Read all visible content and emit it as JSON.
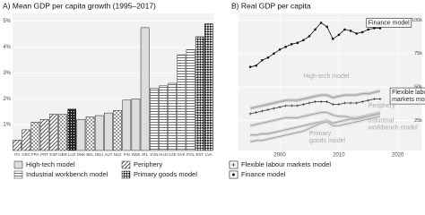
{
  "chart_data": [
    {
      "type": "bar",
      "title": "A) Mean GDP per capita growth (1995–2017)",
      "categories": [
        "ITA",
        "GRC",
        "FRA",
        "PRT",
        "ESP",
        "GBR",
        "LUX",
        "DNK",
        "BEL",
        "DEU",
        "AUT",
        "NLD",
        "FIN",
        "SWE",
        "IRL",
        "SVN",
        "HUN",
        "CZE",
        "SVK",
        "POL",
        "EST",
        "LVA"
      ],
      "series": [
        {
          "name": "High-tech model",
          "pattern": "plain",
          "values": [
            null,
            null,
            null,
            null,
            null,
            null,
            null,
            1.2,
            null,
            1.35,
            1.45,
            null,
            1.95,
            2.0,
            4.75,
            null,
            null,
            null,
            null,
            null,
            null,
            null
          ]
        },
        {
          "name": "Industrial workbench model",
          "pattern": "hlines",
          "values": [
            null,
            null,
            null,
            null,
            null,
            null,
            null,
            null,
            null,
            null,
            null,
            null,
            null,
            null,
            null,
            2.4,
            2.5,
            2.6,
            3.7,
            3.9,
            null,
            null
          ]
        },
        {
          "name": "Periphery",
          "pattern": "diag",
          "values": [
            0.4,
            0.8,
            null,
            1.2,
            1.4,
            null,
            null,
            null,
            null,
            null,
            null,
            null,
            null,
            null,
            null,
            null,
            null,
            null,
            null,
            null,
            null,
            null
          ]
        },
        {
          "name": "Primary goods model",
          "pattern": "check",
          "values": [
            null,
            null,
            null,
            null,
            null,
            null,
            null,
            null,
            null,
            null,
            null,
            null,
            null,
            null,
            null,
            null,
            null,
            null,
            null,
            null,
            4.4,
            4.9
          ]
        },
        {
          "name": "Flexible labour markets model",
          "pattern": "cross",
          "values": [
            null,
            null,
            1.1,
            null,
            null,
            1.4,
            null,
            null,
            1.3,
            null,
            null,
            1.55,
            null,
            null,
            null,
            null,
            null,
            null,
            null,
            null,
            null,
            null
          ]
        },
        {
          "name": "Finance model",
          "pattern": "dark",
          "values": [
            null,
            null,
            null,
            null,
            null,
            null,
            1.6,
            null,
            null,
            null,
            null,
            null,
            null,
            null,
            null,
            null,
            null,
            null,
            null,
            null,
            null,
            null
          ]
        }
      ],
      "ylim": [
        0,
        5.3
      ],
      "yticks": [
        {
          "value": 1,
          "label": "1%"
        },
        {
          "value": 2,
          "label": "2%"
        },
        {
          "value": 3,
          "label": "3%"
        },
        {
          "value": 4,
          "label": "4%"
        },
        {
          "value": 5,
          "label": "5%"
        }
      ],
      "grid": true
    },
    {
      "type": "line",
      "title": "B) Real GDP per capita",
      "x": [
        1995,
        1996,
        1997,
        1998,
        1999,
        2000,
        2001,
        2002,
        2003,
        2004,
        2005,
        2006,
        2007,
        2008,
        2009,
        2010,
        2011,
        2012,
        2013,
        2014,
        2015,
        2016,
        2017
      ],
      "series": [
        {
          "label": [
            "Finance model"
          ],
          "color": "#111111",
          "marker": "dot",
          "values": [
            65000,
            66000,
            70000,
            72000,
            75000,
            78000,
            80000,
            82000,
            83000,
            85000,
            88000,
            93000,
            98000,
            95000,
            86000,
            89000,
            93000,
            92000,
            90000,
            91000,
            93000,
            94000,
            94000
          ]
        },
        {
          "label": [
            "High-tech model"
          ],
          "color": "#bbbbbb",
          "marker": "band",
          "values": [
            34000,
            35000,
            36000,
            37000,
            38000,
            39000,
            40000,
            40000,
            40000,
            41000,
            42000,
            43000,
            44000,
            44000,
            42000,
            43000,
            44000,
            44000,
            44000,
            45000,
            45000,
            46000,
            47000
          ]
        },
        {
          "label": [
            "Flexible labour",
            "markets model"
          ],
          "color": "#333333",
          "marker": "plus",
          "values": [
            30000,
            31000,
            32000,
            33000,
            34000,
            35000,
            36000,
            36000,
            36000,
            37000,
            38000,
            39000,
            39000,
            39000,
            37000,
            37000,
            38000,
            38000,
            38000,
            39000,
            40000,
            41000,
            41000
          ]
        },
        {
          "label": [
            "Periphery"
          ],
          "color": "#cccccc",
          "marker": "band",
          "values": [
            21000,
            22000,
            23000,
            24000,
            25000,
            26000,
            27000,
            27000,
            27000,
            28000,
            29000,
            30000,
            31000,
            31000,
            29000,
            28000,
            28000,
            27000,
            27000,
            28000,
            29000,
            30000,
            31000
          ]
        },
        {
          "label": [
            "Industrial",
            "workbench model"
          ],
          "color": "#cccccc",
          "marker": "band",
          "values": [
            14000,
            14000,
            15000,
            15000,
            16000,
            17000,
            18000,
            19000,
            20000,
            21000,
            22000,
            23000,
            24000,
            25000,
            23000,
            24000,
            25000,
            26000,
            26000,
            27000,
            28000,
            29000,
            30000
          ]
        },
        {
          "label": [
            "Primary",
            "goods model"
          ],
          "color": "#d6d6d6",
          "marker": "band",
          "values": [
            9000,
            10000,
            10000,
            11000,
            12000,
            13000,
            14000,
            15000,
            16000,
            17000,
            19000,
            21000,
            23000,
            24000,
            21000,
            21000,
            22000,
            23000,
            24000,
            25000,
            26000,
            27000,
            28000
          ]
        }
      ],
      "xlim": [
        1993,
        2024
      ],
      "xticks": [
        2000,
        2010,
        2020
      ],
      "ylim": [
        2500,
        105000
      ],
      "yticks": [
        {
          "value": 25000,
          "label": "25k"
        },
        {
          "value": 50000,
          "label": "50k"
        },
        {
          "value": 75000,
          "label": "75k"
        },
        {
          "value": 100000,
          "label": "100k"
        }
      ],
      "grid": true
    }
  ]
}
